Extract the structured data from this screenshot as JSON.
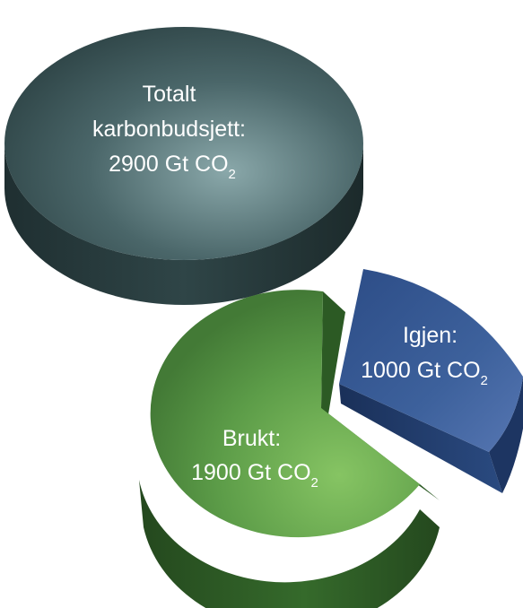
{
  "chart_data": {
    "type": "pie",
    "charts": [
      {
        "slices": [
          {
            "label_lines": [
              "Totalt",
              "karbonbudsjett:"
            ],
            "value": 2900,
            "unit_prefix": "Gt CO",
            "unit_subscript": "2"
          }
        ]
      },
      {
        "slices": [
          {
            "label_lines": [
              "Brukt:"
            ],
            "value": 1900,
            "unit_prefix": "Gt CO",
            "unit_subscript": "2"
          },
          {
            "label_lines": [
              "Igjen:"
            ],
            "value": 1000,
            "unit_prefix": "Gt CO",
            "unit_subscript": "2"
          }
        ]
      }
    ]
  },
  "colors": {
    "total_top": "#4a6669",
    "total_highlight": "#8aa8aa",
    "total_side": "#26393b",
    "used_top": "#5c9c48",
    "used_highlight": "#86c463",
    "used_side": "#2f5d27",
    "remaining_top": "#3a5d97",
    "remaining_highlight": "#5676b2",
    "remaining_side": "#1f3866",
    "label_text": "#ffffff"
  }
}
